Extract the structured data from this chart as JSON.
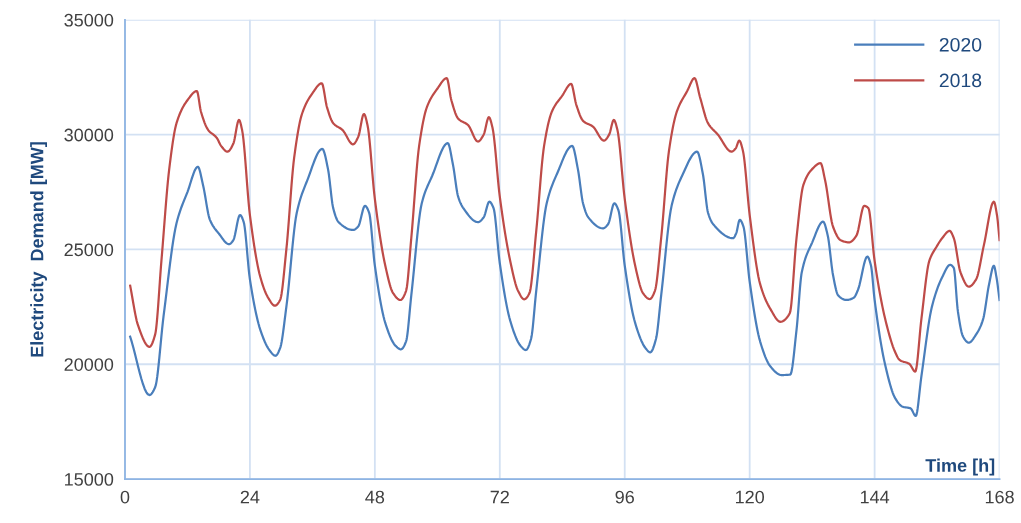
{
  "chart_data": {
    "type": "line",
    "xlabel": "Time [h]",
    "ylabel": "Electricity  Demand [MW]",
    "xlim": [
      0,
      168
    ],
    "xticks": [
      0,
      24,
      48,
      72,
      96,
      120,
      144,
      168
    ],
    "ylim": [
      15000,
      35000
    ],
    "yticks": [
      15000,
      20000,
      25000,
      30000,
      35000
    ],
    "grid": true,
    "legend": "top right",
    "marker": "none",
    "line_style": "solid",
    "series": [
      {
        "name": "2020",
        "color": "#4a7ebb",
        "x": [
          1,
          4.7,
          5.8,
          7.4,
          9.9,
          12,
          14,
          15,
          16.3,
          18,
          20,
          20.8,
          22.1,
          22.8,
          24,
          26,
          27.8,
          28.9,
          29.8,
          31,
          33,
          35,
          37.9,
          39,
          40,
          41,
          43.8,
          44.8,
          46.1,
          46.9,
          48,
          50,
          52,
          53,
          54,
          55,
          57,
          59,
          62,
          63,
          64,
          65,
          67.8,
          68.9,
          70,
          70.8,
          72,
          74,
          76,
          77,
          78,
          79,
          81,
          83,
          85.9,
          87,
          88,
          89,
          91.8,
          92.8,
          94,
          94.8,
          96,
          98,
          100,
          100.9,
          102,
          103,
          105,
          107,
          109.9,
          111,
          112,
          113,
          116.8,
          117.4,
          118.1,
          118.8,
          120,
          122,
          124,
          126.1,
          127.8,
          129,
          130,
          132,
          134.1,
          135,
          136,
          137,
          138.6,
          140,
          140.8,
          142.6,
          143.3,
          144,
          146,
          148,
          149.4,
          150.9,
          151.9,
          153,
          155,
          157,
          158.5,
          159.2,
          160,
          161,
          162.1,
          163.5,
          164.8,
          166,
          166.9,
          167.4,
          168
        ],
        "values": [
          21200,
          18660,
          19000,
          22070,
          26140,
          27500,
          28600,
          27800,
          26300,
          25700,
          25230,
          25400,
          26500,
          26200,
          23700,
          21500,
          20600,
          20370,
          20700,
          22500,
          26600,
          28000,
          29380,
          28500,
          26800,
          26200,
          25850,
          26000,
          26900,
          26600,
          24300,
          21800,
          20800,
          20650,
          21000,
          23000,
          27000,
          28200,
          29630,
          28700,
          27300,
          26800,
          26190,
          26400,
          27080,
          26800,
          24400,
          21900,
          20800,
          20620,
          21100,
          23200,
          27000,
          28300,
          29510,
          28500,
          27000,
          26400,
          25920,
          26100,
          27010,
          26700,
          24300,
          21800,
          20700,
          20520,
          21100,
          23000,
          26900,
          28200,
          29260,
          28300,
          26600,
          26100,
          25490,
          25700,
          26290,
          26000,
          23600,
          21000,
          19900,
          19530,
          19550,
          21500,
          24000,
          25300,
          26210,
          25600,
          23900,
          23000,
          22800,
          22900,
          23240,
          24690,
          24300,
          22800,
          20000,
          18500,
          18150,
          18080,
          17750,
          19500,
          22500,
          23800,
          24330,
          24200,
          22300,
          21200,
          20940,
          21300,
          21930,
          23500,
          24290,
          23800,
          22800
        ]
      },
      {
        "name": "2018",
        "color": "#be4b48",
        "x": [
          1,
          2.5,
          4.7,
          5.8,
          7,
          8.5,
          9.9,
          12,
          13.8,
          14.6,
          16,
          17.6,
          18.5,
          19.7,
          20.8,
          21.9,
          22.5,
          24,
          26,
          27.5,
          28.8,
          29.8,
          31,
          32.5,
          34,
          36,
          37.8,
          38.8,
          40,
          41.8,
          43.8,
          44.8,
          45.9,
          46.6,
          48,
          50,
          51.5,
          52.9,
          54,
          55,
          56.5,
          58,
          60,
          61.8,
          62.7,
          64,
          65.9,
          67.8,
          68.9,
          69.9,
          70.6,
          72,
          74,
          75.5,
          76.7,
          77.7,
          79,
          80.5,
          82,
          84,
          85.7,
          86.7,
          88,
          89.9,
          92,
          93,
          93.9,
          94.6,
          96,
          98,
          99.5,
          100.8,
          101.8,
          103,
          104.5,
          106,
          108,
          109.4,
          110.5,
          112,
          113.9,
          116.5,
          117.3,
          118,
          118.7,
          120,
          122,
          124,
          125.9,
          127.7,
          129,
          130.3,
          132,
          133.6,
          134.5,
          136,
          137.5,
          139.1,
          140.5,
          142,
          142.8,
          144,
          146,
          148,
          148.8,
          150.7,
          151.8,
          153,
          154.5,
          155.9,
          157,
          158.4,
          159.2,
          160.5,
          162.1,
          163.5,
          165,
          166.9,
          167.5,
          168
        ],
        "values": [
          23420,
          21700,
          20760,
          21300,
          24500,
          28500,
          30500,
          31500,
          31900,
          31000,
          30200,
          29870,
          29500,
          29260,
          29600,
          30640,
          30200,
          26500,
          23800,
          22900,
          22550,
          22800,
          25000,
          29000,
          30900,
          31800,
          32240,
          31200,
          30500,
          30200,
          29580,
          29900,
          30900,
          30400,
          27200,
          24300,
          23100,
          22800,
          23200,
          25500,
          29500,
          31200,
          32000,
          32460,
          31500,
          30700,
          30420,
          29700,
          30000,
          30760,
          30300,
          27300,
          24500,
          23200,
          22830,
          23100,
          25800,
          29500,
          31000,
          31700,
          32210,
          31300,
          30600,
          30350,
          29740,
          30000,
          30640,
          30200,
          27200,
          24300,
          23100,
          22840,
          23200,
          25500,
          29300,
          31000,
          31900,
          32460,
          31600,
          30500,
          30000,
          29260,
          29400,
          29740,
          29300,
          26500,
          23500,
          22400,
          21850,
          22220,
          25500,
          27800,
          28500,
          28760,
          28000,
          26000,
          25400,
          25310,
          25600,
          26900,
          26800,
          24500,
          22000,
          20500,
          20190,
          20010,
          19680,
          22000,
          24500,
          25120,
          25500,
          25810,
          25500,
          24000,
          23380,
          23700,
          25200,
          27080,
          26500,
          25410
        ]
      }
    ]
  }
}
